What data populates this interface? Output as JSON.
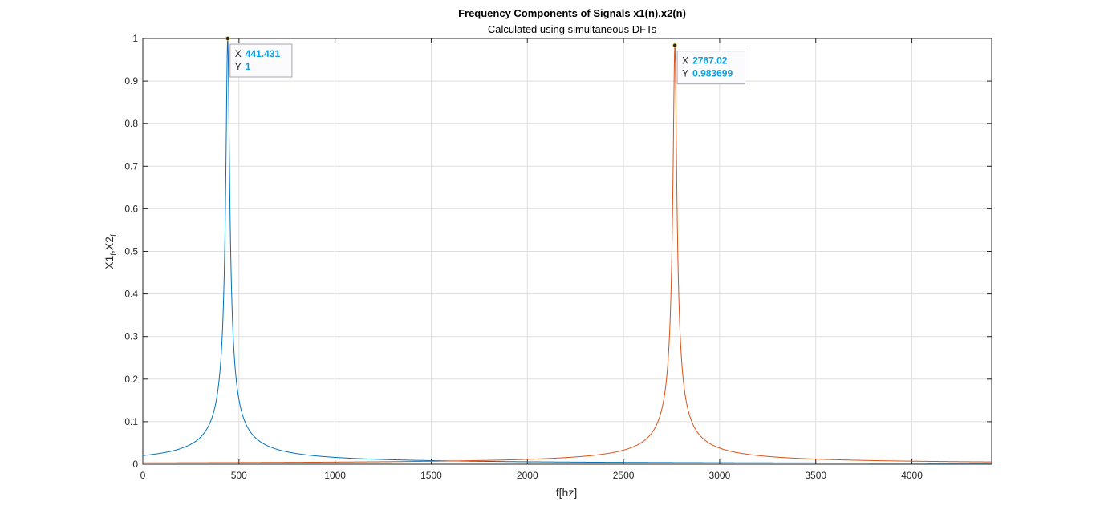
{
  "chart_data": {
    "type": "line",
    "title": "Frequency Components of Signals x1(n),x2(n)",
    "subtitle": "Calculated using simultaneous DFTs",
    "xlabel": "f[hz]",
    "ylabel": {
      "base1": "X1",
      "sub1": "f",
      "sep": ",",
      "base2": "X2",
      "sub2": "f"
    },
    "xlim": [
      0,
      4415
    ],
    "ylim": [
      0,
      1
    ],
    "xticks": [
      0,
      500,
      1000,
      1500,
      2000,
      2500,
      3000,
      3500,
      4000
    ],
    "yticks": [
      0,
      0.1,
      0.2,
      0.3,
      0.4,
      0.5,
      0.6,
      0.7,
      0.8,
      0.9,
      1
    ],
    "xtick_labels": [
      "0",
      "500",
      "1000",
      "1500",
      "2000",
      "2500",
      "3000",
      "3500",
      "4000"
    ],
    "ytick_labels": [
      "0",
      "0.1",
      "0.2",
      "0.3",
      "0.4",
      "0.5",
      "0.6",
      "0.7",
      "0.8",
      "0.9",
      "1"
    ],
    "grid": true,
    "series": [
      {
        "color": "#0072bd",
        "peak_x": 441.431,
        "peak_y": 1,
        "halfwidth": 9
      },
      {
        "color": "#d95319",
        "peak_x": 2767.02,
        "peak_y": 0.983699,
        "halfwidth": 9
      }
    ],
    "datatips": [
      {
        "x_key": "X",
        "x_value": "441.431",
        "y_key": "Y",
        "y_value": "1",
        "at_x": 441.431,
        "at_y": 1
      },
      {
        "x_key": "X",
        "x_value": "2767.02",
        "y_key": "Y",
        "y_value": "0.983699",
        "at_x": 2767.02,
        "at_y": 0.983699
      }
    ]
  }
}
